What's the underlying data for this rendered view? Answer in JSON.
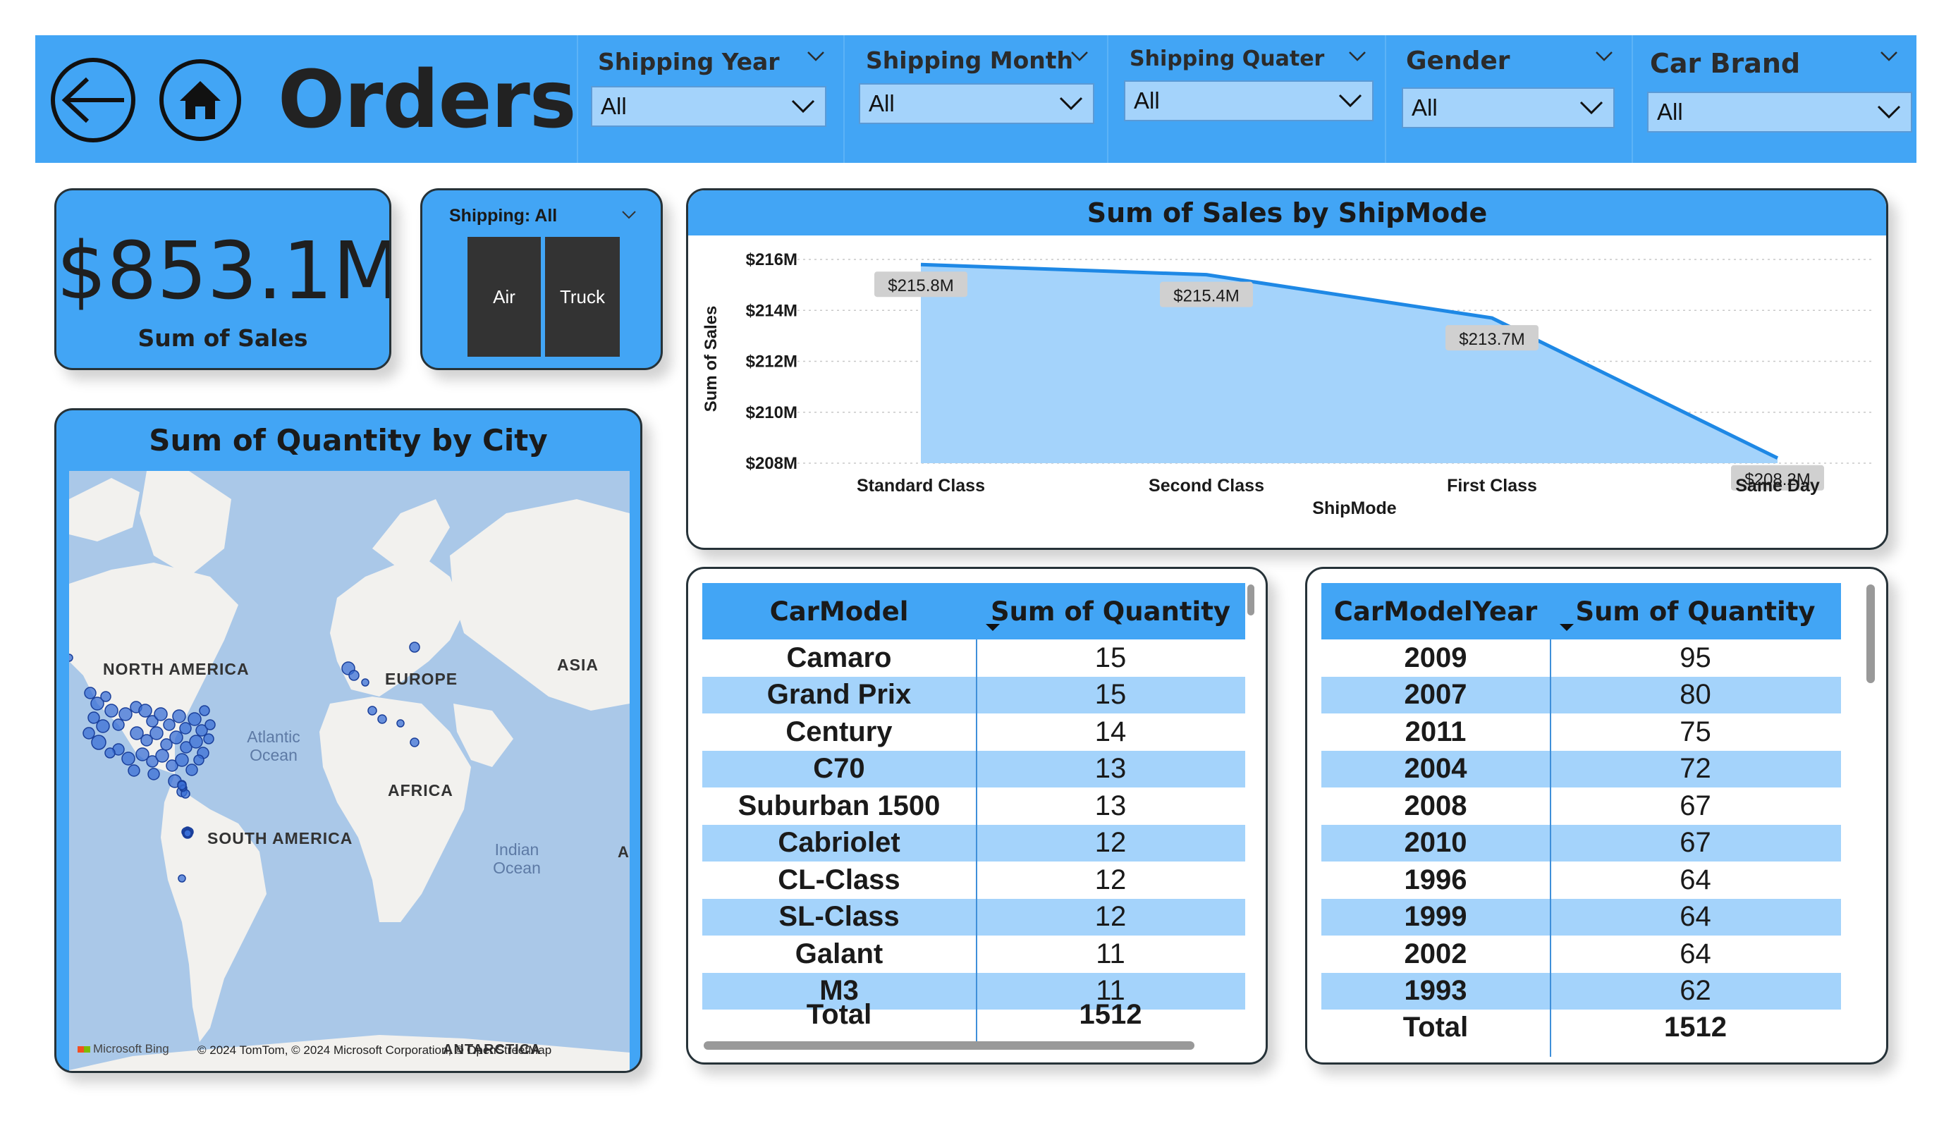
{
  "header": {
    "title": "Orders",
    "back_icon": "arrow-left-icon",
    "home_icon": "home-icon"
  },
  "slicers": [
    {
      "title": "Shipping Year",
      "value": "All"
    },
    {
      "title": "Shipping Month",
      "value": "All"
    },
    {
      "title": "Shipping Quater",
      "value": "All"
    },
    {
      "title": "Gender",
      "value": "All"
    },
    {
      "title": "Car Brand",
      "value": "All"
    }
  ],
  "kpi": {
    "value": "$853.1M",
    "label": "Sum of Sales"
  },
  "shipping_slicer": {
    "title": "Shipping: All",
    "options": [
      "Air",
      "Truck"
    ]
  },
  "map": {
    "title": "Sum of Quantity by City",
    "labels": {
      "north_america": "NORTH AMERICA",
      "europe": "EUROPE",
      "asia": "ASIA",
      "africa": "AFRICA",
      "south_america": "SOUTH AMERICA",
      "atlantic": "Atlantic Ocean",
      "indian": "Indian Ocean",
      "antarctica": "ANTARCTICA",
      "cut_a": "A"
    },
    "bing": "Microsoft Bing",
    "copyright": "© 2024 TomTom, © 2024 Microsoft Corporation, © OpenStreetMap",
    "copyright_link": "OpenStreetMap"
  },
  "chart_data": {
    "type": "area",
    "title": "Sum of Sales by ShipMode",
    "xlabel": "ShipMode",
    "ylabel": "Sum of Sales",
    "categories": [
      "Standard Class",
      "Second Class",
      "First Class",
      "Same Day"
    ],
    "values": [
      215.8,
      215.4,
      213.7,
      208.2
    ],
    "data_labels": [
      "$215.8M",
      "$215.4M",
      "$213.7M",
      "$208.2M"
    ],
    "y_ticks": [
      "$216M",
      "$214M",
      "$212M",
      "$210M",
      "$208M"
    ],
    "y_tick_values": [
      216,
      214,
      212,
      210,
      208
    ],
    "ylim": [
      208,
      216
    ],
    "grid": true,
    "colors": {
      "line": "#1e88e5",
      "fill": "#a4d3fb"
    }
  },
  "car_model_table": {
    "headers": [
      "CarModel",
      "Sum of Quantity"
    ],
    "rows": [
      [
        "Camaro",
        "15"
      ],
      [
        "Grand Prix",
        "15"
      ],
      [
        "Century",
        "14"
      ],
      [
        "C70",
        "13"
      ],
      [
        "Suburban 1500",
        "13"
      ],
      [
        "Cabriolet",
        "12"
      ],
      [
        "CL-Class",
        "12"
      ],
      [
        "SL-Class",
        "12"
      ],
      [
        "Galant",
        "11"
      ],
      [
        "M3",
        "11"
      ]
    ],
    "total": [
      "Total",
      "1512"
    ]
  },
  "car_year_table": {
    "headers": [
      "CarModelYear",
      "Sum of Quantity"
    ],
    "rows": [
      [
        "2009",
        "95"
      ],
      [
        "2007",
        "80"
      ],
      [
        "2011",
        "75"
      ],
      [
        "2004",
        "72"
      ],
      [
        "2008",
        "67"
      ],
      [
        "2010",
        "67"
      ],
      [
        "1996",
        "64"
      ],
      [
        "1999",
        "64"
      ],
      [
        "2002",
        "64"
      ],
      [
        "1993",
        "62"
      ]
    ],
    "total": [
      "Total",
      "1512"
    ]
  },
  "colors": {
    "accent": "#42a5f5",
    "band": "#a4d3fb",
    "dark": "#333333"
  }
}
